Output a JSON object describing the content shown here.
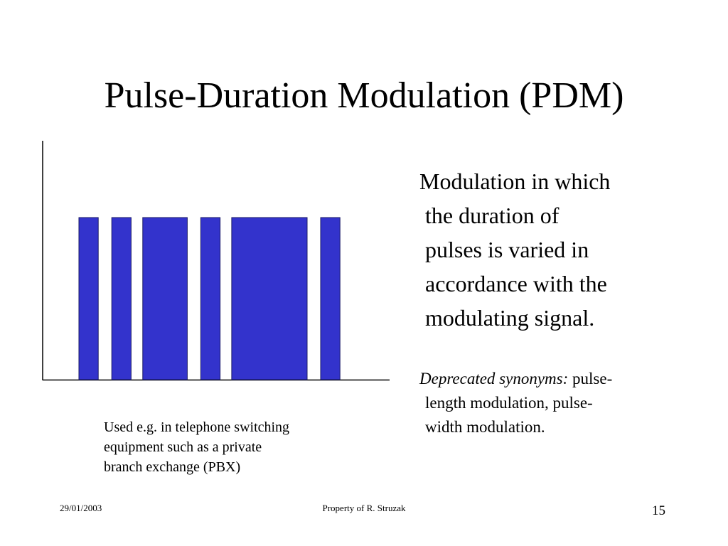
{
  "slide": {
    "title": "Pulse-Duration Modulation (PDM)",
    "definition_lines": [
      "Modulation in which",
      "the duration of",
      "pulses is varied in",
      "accordance with  the",
      "modulating signal."
    ],
    "synonyms": {
      "label": "Deprecated synonyms:",
      "line1_rest": " pulse-",
      "line2": "length modulation, pulse-",
      "line3": "width modulation."
    },
    "caption_lines": [
      "Used e.g. in telephone switching",
      "equipment such as a private",
      "branch exchange (PBX)"
    ]
  },
  "diagram": {
    "pulse_color": "#3333cc",
    "axis_color": "#000000",
    "pulses": [
      {
        "start": 0.0,
        "duration": 1.0
      },
      {
        "start": 1.7,
        "duration": 1.0
      },
      {
        "start": 3.3,
        "duration": 2.3
      },
      {
        "start": 6.3,
        "duration": 1.0
      },
      {
        "start": 7.9,
        "duration": 3.9
      },
      {
        "start": 12.5,
        "duration": 1.0
      }
    ]
  },
  "footer": {
    "date": "29/01/2003",
    "owner": "Property of R. Struzak",
    "page_number": "15"
  }
}
